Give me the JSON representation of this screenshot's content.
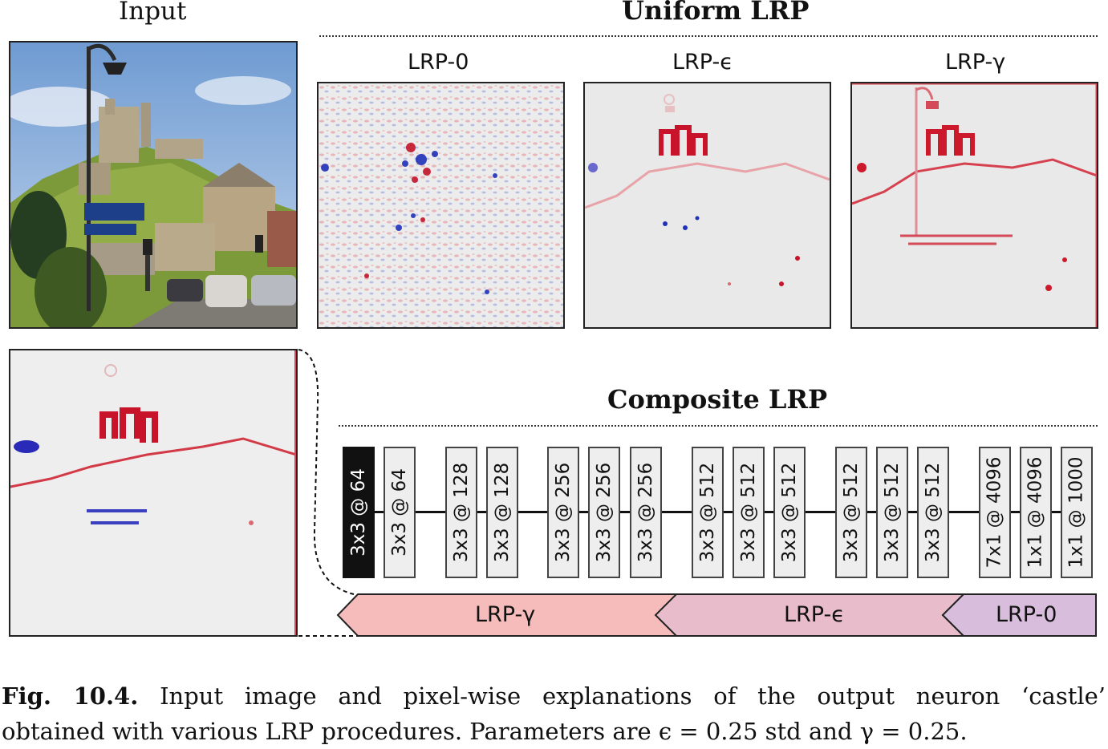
{
  "input_title": "Input",
  "uniform": {
    "title": "Uniform LRP",
    "panels": [
      {
        "label": "LRP-0"
      },
      {
        "label": "LRP-ϵ"
      },
      {
        "label": "LRP-γ"
      }
    ]
  },
  "composite": {
    "title": "Composite LRP",
    "layers": [
      {
        "label": "3x3 @ 64"
      },
      {
        "label": "3x3 @ 64"
      },
      {
        "label": "3x3 @ 128"
      },
      {
        "label": "3x3 @ 128"
      },
      {
        "label": "3x3 @ 256"
      },
      {
        "label": "3x3 @ 256"
      },
      {
        "label": "3x3 @ 256"
      },
      {
        "label": "3x3 @ 512"
      },
      {
        "label": "3x3 @ 512"
      },
      {
        "label": "3x3 @ 512"
      },
      {
        "label": "3x3 @ 512"
      },
      {
        "label": "3x3 @ 512"
      },
      {
        "label": "3x3 @ 512"
      },
      {
        "label": "7x1 @ 4096"
      },
      {
        "label": "1x1 @ 4096"
      },
      {
        "label": "1x1 @ 1000"
      }
    ],
    "rules": [
      {
        "label": "LRP-γ",
        "color": "#f6bcbc"
      },
      {
        "label": "LRP-ϵ",
        "color": "#e9bccb"
      },
      {
        "label": "LRP-0",
        "color": "#d8bedc"
      }
    ]
  },
  "caption": {
    "fig_label": "Fig. 10.4.",
    "line1": "Input image and pixel-wise explanations of the output neuron ‘castle’",
    "line2": "obtained with various LRP procedures. Parameters are ϵ = 0.25 std and γ = 0.25."
  },
  "colors": {
    "positive": "#d0101c",
    "negative": "#2030c0",
    "heatmap_bg": "#e9e9e9"
  }
}
